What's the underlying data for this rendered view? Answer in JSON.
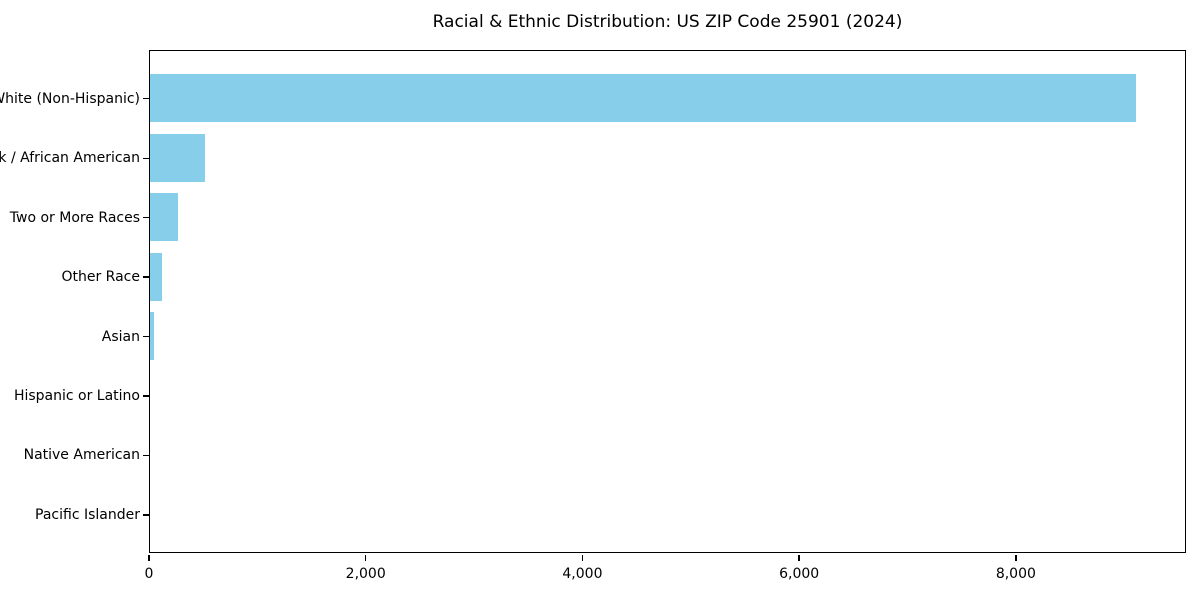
{
  "chart_data": {
    "type": "bar",
    "orientation": "horizontal",
    "title": "Racial & Ethnic Distribution: US ZIP Code 25901 (2024)",
    "categories": [
      "White (Non-Hispanic)",
      "Black / African American",
      "Two or More Races",
      "Other Race",
      "Asian",
      "Hispanic or Latino",
      "Native American",
      "Pacific Islander"
    ],
    "values": [
      9100,
      510,
      255,
      110,
      35,
      0,
      0,
      0
    ],
    "xlabel": "",
    "ylabel": "",
    "xlim": [
      0,
      9570
    ],
    "x_ticks": [
      0,
      2000,
      4000,
      6000,
      8000
    ],
    "x_tick_labels": [
      "0",
      "2,000",
      "4,000",
      "6,000",
      "8,000"
    ],
    "bar_color": "#87CEEB",
    "background_color": "#ffffff",
    "text_color": "#000000",
    "grid": false,
    "legend": null
  }
}
